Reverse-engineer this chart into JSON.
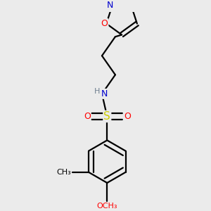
{
  "bg_color": "#ebebeb",
  "bond_color": "#000000",
  "bond_width": 1.6,
  "atom_colors": {
    "N": "#0000cd",
    "O": "#ff0000",
    "S": "#cccc00",
    "C": "#000000",
    "H": "#708090"
  },
  "font_size": 9,
  "fig_size": [
    3.0,
    3.0
  ],
  "dpi": 100
}
